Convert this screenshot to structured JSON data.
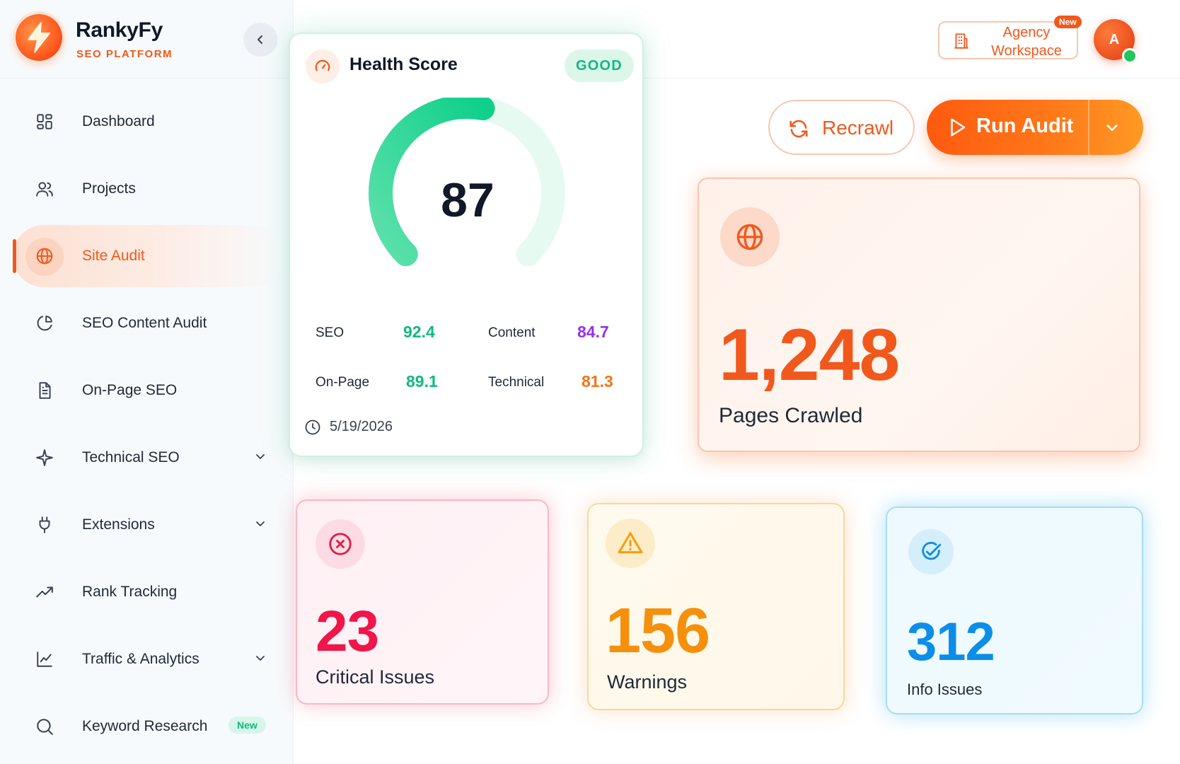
{
  "brand": {
    "name": "RankyFy",
    "subtitle": "SEO PLATFORM"
  },
  "sidebar": {
    "items": [
      {
        "label": "Dashboard",
        "icon": "dashboard-icon"
      },
      {
        "label": "Projects",
        "icon": "users-icon"
      },
      {
        "label": "Site Audit",
        "icon": "globe-icon",
        "active": true
      },
      {
        "label": "SEO Content Audit",
        "icon": "pie-chart-icon"
      },
      {
        "label": "On-Page SEO",
        "icon": "document-icon"
      },
      {
        "label": "Technical SEO",
        "icon": "sparkle-icon",
        "expandable": true
      },
      {
        "label": "Extensions",
        "icon": "plug-icon",
        "expandable": true
      },
      {
        "label": "Rank Tracking",
        "icon": "trending-up-icon"
      },
      {
        "label": "Traffic & Analytics",
        "icon": "line-chart-icon",
        "expandable": true
      },
      {
        "label": "Keyword Research",
        "icon": "search-icon",
        "badge": "New"
      }
    ]
  },
  "header": {
    "agency_label": "Agency Workspace",
    "agency_badge": "New",
    "avatar_initial": "A"
  },
  "actions": {
    "recrawl_label": "Recrawl",
    "run_audit_label": "Run Audit"
  },
  "health": {
    "title": "Health Score",
    "status": "GOOD",
    "score": "87",
    "score_fraction": 0.87,
    "metrics": [
      {
        "label": "SEO",
        "value": "92.4",
        "color": "#10b981"
      },
      {
        "label": "Content",
        "value": "84.7",
        "color": "#9333ea"
      },
      {
        "label": "On-Page",
        "value": "89.1",
        "color": "#10b981"
      },
      {
        "label": "Technical",
        "value": "81.3",
        "color": "#f97316"
      }
    ],
    "date": "5/19/2026"
  },
  "pages_crawled": {
    "value": "1,248",
    "label": "Pages Crawled"
  },
  "stats": {
    "critical": {
      "value": "23",
      "label": "Critical Issues",
      "color": "#f0164a"
    },
    "warnings": {
      "value": "156",
      "label": "Warnings",
      "color": "#f5900c"
    },
    "info": {
      "value": "312",
      "label": "Info Issues",
      "color": "#0c8ee8"
    }
  },
  "colors": {
    "accent": "#f1581c",
    "success": "#10b981"
  }
}
